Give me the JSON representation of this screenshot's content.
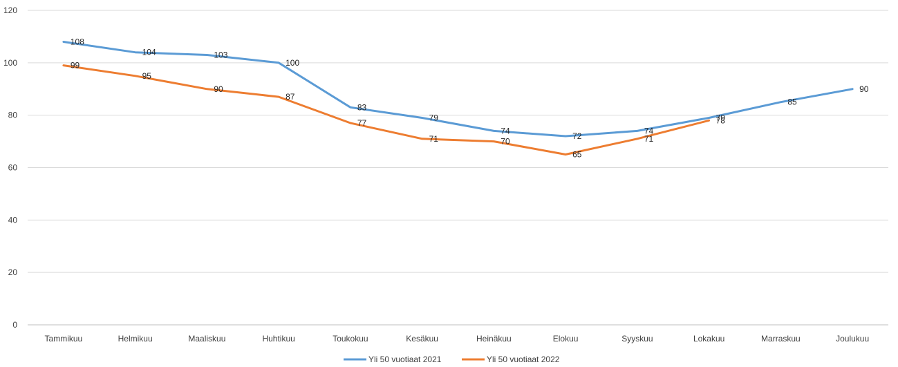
{
  "chart_data": {
    "type": "line",
    "title": "",
    "xlabel": "",
    "ylabel": "",
    "ylim": [
      0,
      120
    ],
    "yticks": [
      0,
      20,
      40,
      60,
      80,
      100,
      120
    ],
    "grid": true,
    "legend_position": "bottom",
    "categories": [
      "Tammikuu",
      "Helmikuu",
      "Maaliskuu",
      "Huhtikuu",
      "Toukokuu",
      "Kesäkuu",
      "Heinäkuu",
      "Elokuu",
      "Syyskuu",
      "Lokakuu",
      "Marraskuu",
      "Joulukuu"
    ],
    "series": [
      {
        "name": "Yli 50 vuotiaat 2021",
        "color": "#5B9BD5",
        "values": [
          108,
          104,
          103,
          100,
          83,
          79,
          74,
          72,
          74,
          79,
          85,
          90
        ]
      },
      {
        "name": "Yli 50 vuotiaat 2022",
        "color": "#ED7D31",
        "values": [
          99,
          95,
          90,
          87,
          77,
          71,
          70,
          65,
          71,
          78,
          null,
          null
        ]
      }
    ]
  }
}
